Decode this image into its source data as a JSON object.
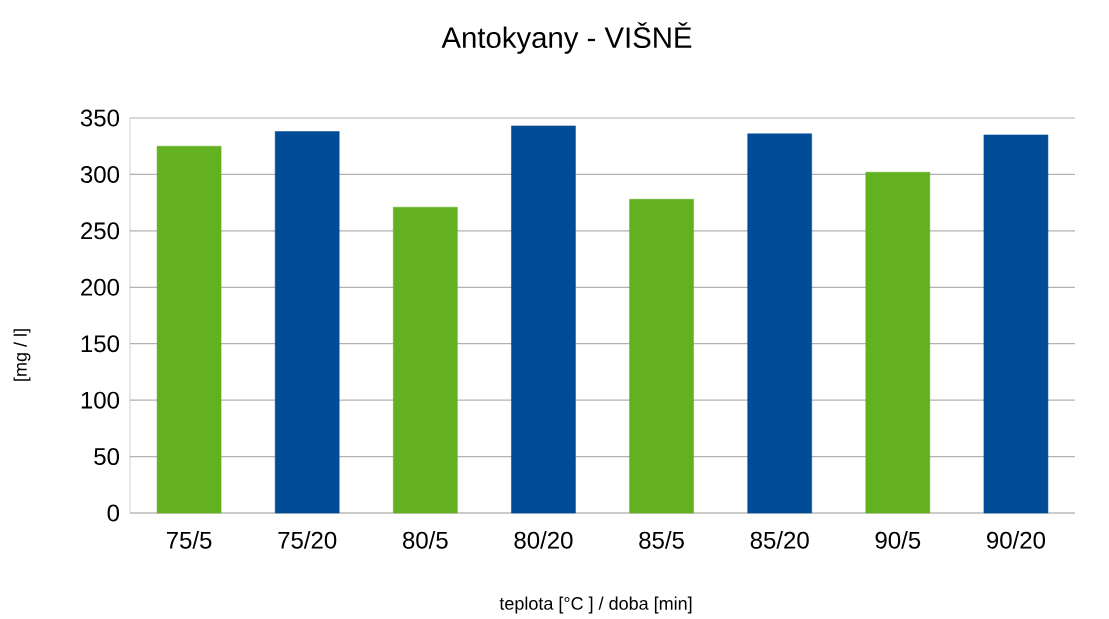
{
  "chart_data": {
    "type": "bar",
    "title": "Antokyany - VIŠNĚ",
    "xlabel": "teplota [°C ] / doba [min]",
    "ylabel": "[mg / l]",
    "categories": [
      "75/5",
      "75/20",
      "80/5",
      "80/20",
      "85/5",
      "85/20",
      "90/5",
      "90/20"
    ],
    "values": [
      325,
      338,
      271,
      343,
      278,
      336,
      302,
      335
    ],
    "colors": [
      "#63b021",
      "#004c97",
      "#63b021",
      "#004c97",
      "#63b021",
      "#004c97",
      "#63b021",
      "#004c97"
    ],
    "ylim": [
      0,
      350
    ],
    "yticks": [
      0,
      50,
      100,
      150,
      200,
      250,
      300,
      350
    ],
    "grid": "y"
  }
}
